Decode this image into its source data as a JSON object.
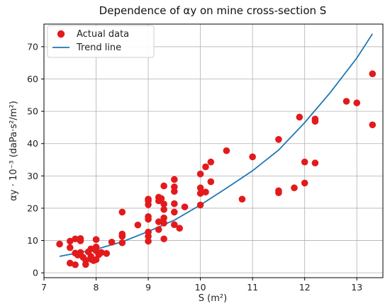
{
  "chart_data": {
    "type": "scatter",
    "title": "Dependence of αy on mine cross-section S",
    "xlabel": "S (m²)",
    "ylabel": "αy · 10⁻³ (daPa·s²/m²)",
    "xlim": [
      7,
      13.5
    ],
    "ylim": [
      -1.5,
      77
    ],
    "x_ticks": [
      7,
      8,
      9,
      10,
      11,
      12,
      13
    ],
    "y_ticks": [
      0,
      10,
      20,
      30,
      40,
      50,
      60,
      70
    ],
    "grid": true,
    "legend_position": "top-left",
    "series": [
      {
        "name": "Actual data",
        "kind": "scatter",
        "color": "#e31a1c",
        "points": [
          [
            7.3,
            8.9
          ],
          [
            7.5,
            3.0
          ],
          [
            7.5,
            7.8
          ],
          [
            7.5,
            9.8
          ],
          [
            7.6,
            2.5
          ],
          [
            7.6,
            6.1
          ],
          [
            7.6,
            10.5
          ],
          [
            7.65,
            5.5
          ],
          [
            7.7,
            6.3
          ],
          [
            7.7,
            9.9
          ],
          [
            7.7,
            10.6
          ],
          [
            7.75,
            4.8
          ],
          [
            7.8,
            2.6
          ],
          [
            7.8,
            3.9
          ],
          [
            7.85,
            6.5
          ],
          [
            7.9,
            4.2
          ],
          [
            7.9,
            5.1
          ],
          [
            7.9,
            7.4
          ],
          [
            7.95,
            3.8
          ],
          [
            8.0,
            4.1
          ],
          [
            8.0,
            6.8
          ],
          [
            8.0,
            10.3
          ],
          [
            8.05,
            5.6
          ],
          [
            8.0,
            8.0
          ],
          [
            8.1,
            6.3
          ],
          [
            8.2,
            6.0
          ],
          [
            8.3,
            9.5
          ],
          [
            8.5,
            9.3
          ],
          [
            8.5,
            11.3
          ],
          [
            8.5,
            12.0
          ],
          [
            8.5,
            18.8
          ],
          [
            8.8,
            14.8
          ],
          [
            9.0,
            9.8
          ],
          [
            9.0,
            11.3
          ],
          [
            9.0,
            12.6
          ],
          [
            9.0,
            16.6
          ],
          [
            9.0,
            17.4
          ],
          [
            9.0,
            21.1
          ],
          [
            9.0,
            22.3
          ],
          [
            9.0,
            22.8
          ],
          [
            9.2,
            13.4
          ],
          [
            9.2,
            15.8
          ],
          [
            9.2,
            22.3
          ],
          [
            9.2,
            23.4
          ],
          [
            9.25,
            23.0
          ],
          [
            9.3,
            10.5
          ],
          [
            9.3,
            15.4
          ],
          [
            9.3,
            17.0
          ],
          [
            9.3,
            19.6
          ],
          [
            9.3,
            21.3
          ],
          [
            9.3,
            26.9
          ],
          [
            9.5,
            14.9
          ],
          [
            9.5,
            18.8
          ],
          [
            9.5,
            21.4
          ],
          [
            9.5,
            25.2
          ],
          [
            9.5,
            26.6
          ],
          [
            9.5,
            28.9
          ],
          [
            9.6,
            13.8
          ],
          [
            9.7,
            20.4
          ],
          [
            10.0,
            21.0
          ],
          [
            10.0,
            24.6
          ],
          [
            10.0,
            26.3
          ],
          [
            10.0,
            30.6
          ],
          [
            10.1,
            25.0
          ],
          [
            10.1,
            32.8
          ],
          [
            10.2,
            28.2
          ],
          [
            10.2,
            34.3
          ],
          [
            10.5,
            37.8
          ],
          [
            10.8,
            22.8
          ],
          [
            11.0,
            35.9
          ],
          [
            11.5,
            24.8
          ],
          [
            11.5,
            25.4
          ],
          [
            11.5,
            41.3
          ],
          [
            11.8,
            26.3
          ],
          [
            11.9,
            48.2
          ],
          [
            12.0,
            27.8
          ],
          [
            12.0,
            34.3
          ],
          [
            12.2,
            34.0
          ],
          [
            12.2,
            46.9
          ],
          [
            12.2,
            47.6
          ],
          [
            12.8,
            53.1
          ],
          [
            13.0,
            52.6
          ],
          [
            13.3,
            45.8
          ],
          [
            13.3,
            61.6
          ]
        ]
      },
      {
        "name": "Trend line",
        "kind": "line",
        "color": "#1f77b4",
        "points": [
          [
            7.3,
            5.1
          ],
          [
            7.6,
            6.0
          ],
          [
            8.0,
            7.3
          ],
          [
            8.5,
            9.6
          ],
          [
            9.0,
            12.8
          ],
          [
            9.5,
            16.3
          ],
          [
            10.0,
            21.0
          ],
          [
            10.5,
            26.2
          ],
          [
            11.0,
            31.6
          ],
          [
            11.5,
            38.0
          ],
          [
            12.0,
            46.5
          ],
          [
            12.5,
            56.0
          ],
          [
            13.0,
            66.5
          ],
          [
            13.3,
            74.0
          ]
        ]
      }
    ]
  }
}
